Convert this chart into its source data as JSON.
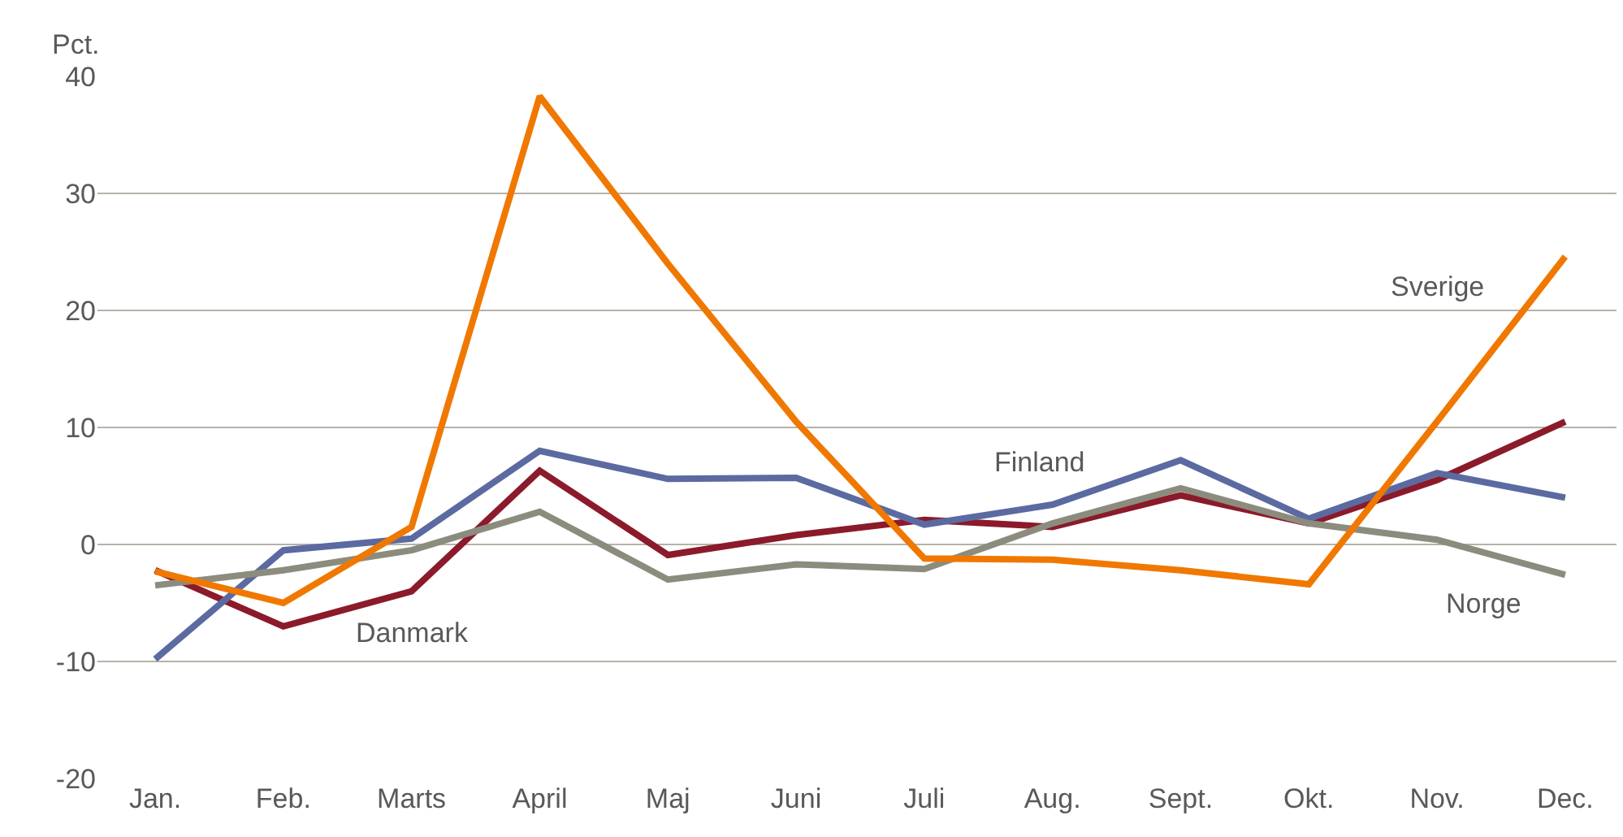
{
  "chart_data": {
    "type": "line",
    "ylabel": "Pct.",
    "categories": [
      "Jan.",
      "Feb.",
      "Marts",
      "April",
      "Maj",
      "Juni",
      "Juli",
      "Aug.",
      "Sept.",
      "Okt.",
      "Nov.",
      "Dec."
    ],
    "series": [
      {
        "name": "Danmark",
        "color": "#8b1a2b",
        "values": [
          -2.2,
          -7,
          -4,
          6.3,
          -0.9,
          0.8,
          2.1,
          1.5,
          4.2,
          1.8,
          5.5,
          10.5
        ]
      },
      {
        "name": "Finland",
        "color": "#5b6aa0",
        "values": [
          -9.8,
          -0.5,
          0.5,
          8,
          5.6,
          5.7,
          1.7,
          3.4,
          7.2,
          2.2,
          6.1,
          4
        ]
      },
      {
        "name": "Norge",
        "color": "#8c8c7e",
        "values": [
          -3.5,
          -2.2,
          -0.5,
          2.8,
          -3,
          -1.7,
          -2.1,
          1.8,
          4.8,
          1.8,
          0.4,
          -2.6
        ]
      },
      {
        "name": "Sverige",
        "color": "#f07800",
        "values": [
          -2.3,
          -5,
          1.5,
          38.3,
          24,
          10.5,
          -1.2,
          -1.3,
          -2.2,
          -3.4,
          10.5,
          24.6
        ]
      }
    ],
    "ylim": [
      -20,
      40
    ],
    "yticks": [
      -20,
      -10,
      0,
      10,
      20,
      30,
      40
    ],
    "grid": "y",
    "legend": false,
    "marker": "none",
    "line_style": "solid"
  }
}
